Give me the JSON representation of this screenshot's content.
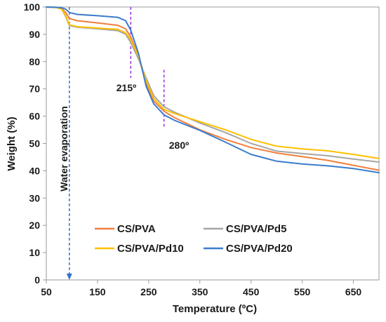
{
  "chart_data": {
    "type": "line",
    "xlabel": "Temperature (ºC)",
    "ylabel": "Weight (%)",
    "xlim": [
      50,
      700
    ],
    "ylim": [
      0,
      100
    ],
    "xticks": [
      50,
      150,
      250,
      350,
      450,
      550,
      650
    ],
    "yticks": [
      0,
      10,
      20,
      30,
      40,
      50,
      60,
      70,
      80,
      90,
      100
    ],
    "grid": false,
    "legend_position": "bottom-center",
    "series": [
      {
        "name": "CS/PVA",
        "color": "#f07f3c",
        "x": [
          50,
          70,
          80,
          88,
          95,
          110,
          150,
          190,
          205,
          215,
          230,
          245,
          260,
          280,
          300,
          350,
          400,
          450,
          500,
          550,
          600,
          650,
          700
        ],
        "y": [
          100,
          99.8,
          99.4,
          98,
          95.8,
          95,
          94.2,
          93.3,
          92,
          89,
          82,
          72,
          65.5,
          61.8,
          59.5,
          55,
          51.5,
          48.5,
          46.5,
          45.2,
          43.8,
          42,
          40.2
        ]
      },
      {
        "name": "CS/PVA/Pd5",
        "color": "#a5a5a5",
        "x": [
          50,
          70,
          80,
          88,
          95,
          110,
          150,
          190,
          205,
          215,
          230,
          245,
          260,
          280,
          300,
          350,
          400,
          450,
          500,
          550,
          600,
          650,
          700
        ],
        "y": [
          100,
          99.8,
          99.2,
          96.5,
          93.2,
          92.6,
          92,
          91.3,
          90,
          87,
          81,
          74,
          67.5,
          63.5,
          61.5,
          57.5,
          54,
          50,
          47.2,
          46.3,
          45.5,
          44.3,
          43.2
        ]
      },
      {
        "name": "CS/PVA/Pd10",
        "color": "#ffc000",
        "x": [
          50,
          70,
          80,
          88,
          95,
          110,
          150,
          190,
          205,
          215,
          230,
          245,
          260,
          280,
          300,
          350,
          400,
          450,
          500,
          550,
          600,
          650,
          700
        ],
        "y": [
          100,
          99.8,
          99.2,
          96.8,
          93.5,
          92.8,
          92.3,
          91.8,
          90.5,
          88,
          82,
          73,
          66.5,
          62.5,
          61,
          58,
          55,
          51.5,
          49,
          48,
          47.3,
          46,
          44.5
        ]
      },
      {
        "name": "CS/PVA/Pd20",
        "color": "#3a7ccc",
        "x": [
          50,
          70,
          80,
          88,
          95,
          110,
          150,
          190,
          205,
          215,
          230,
          245,
          260,
          280,
          300,
          350,
          400,
          450,
          500,
          550,
          600,
          650,
          700
        ],
        "y": [
          100,
          99.9,
          99.7,
          99.2,
          98,
          97.3,
          96.8,
          96.2,
          95,
          91.5,
          83,
          71,
          64.5,
          60.5,
          58.5,
          54.8,
          50.5,
          46,
          43.5,
          42.5,
          41.8,
          40.8,
          39.3
        ]
      }
    ],
    "annotations": [
      {
        "text": "215º",
        "x": 215,
        "line_y": [
          74,
          100
        ]
      },
      {
        "text": "280º",
        "x": 280,
        "line_y": [
          56,
          77
        ]
      },
      {
        "text": "Water evaporation",
        "x": 95,
        "arrow_y": [
          100,
          0
        ]
      }
    ]
  }
}
